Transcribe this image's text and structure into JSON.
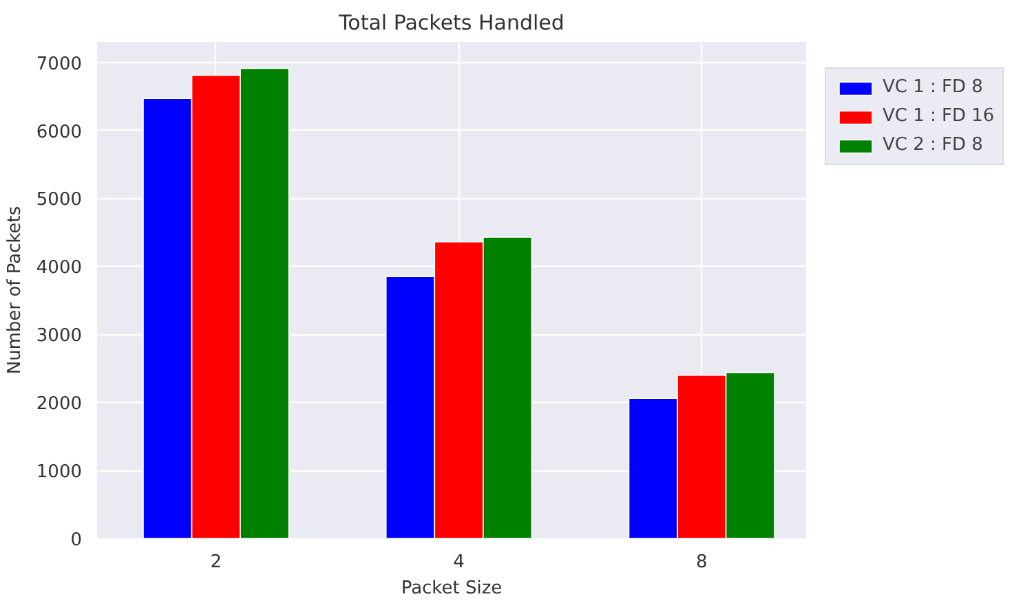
{
  "chart_data": {
    "type": "bar",
    "title": "Total Packets Handled",
    "xlabel": "Packet Size",
    "ylabel": "Number of Packets",
    "categories": [
      "2",
      "4",
      "8"
    ],
    "series": [
      {
        "name": "VC 1 : FD 8",
        "color": "#0000ff",
        "values": [
          6470,
          3850,
          2060
        ]
      },
      {
        "name": "VC 1 : FD 16",
        "color": "#ff0000",
        "values": [
          6810,
          4360,
          2400
        ]
      },
      {
        "name": "VC 2 : FD 8",
        "color": "#008000",
        "values": [
          6910,
          4430,
          2440
        ]
      }
    ],
    "ylim": [
      0,
      7300
    ],
    "yticks": [
      0,
      1000,
      2000,
      3000,
      4000,
      5000,
      6000,
      7000
    ],
    "grid": true,
    "legend": "top right"
  }
}
